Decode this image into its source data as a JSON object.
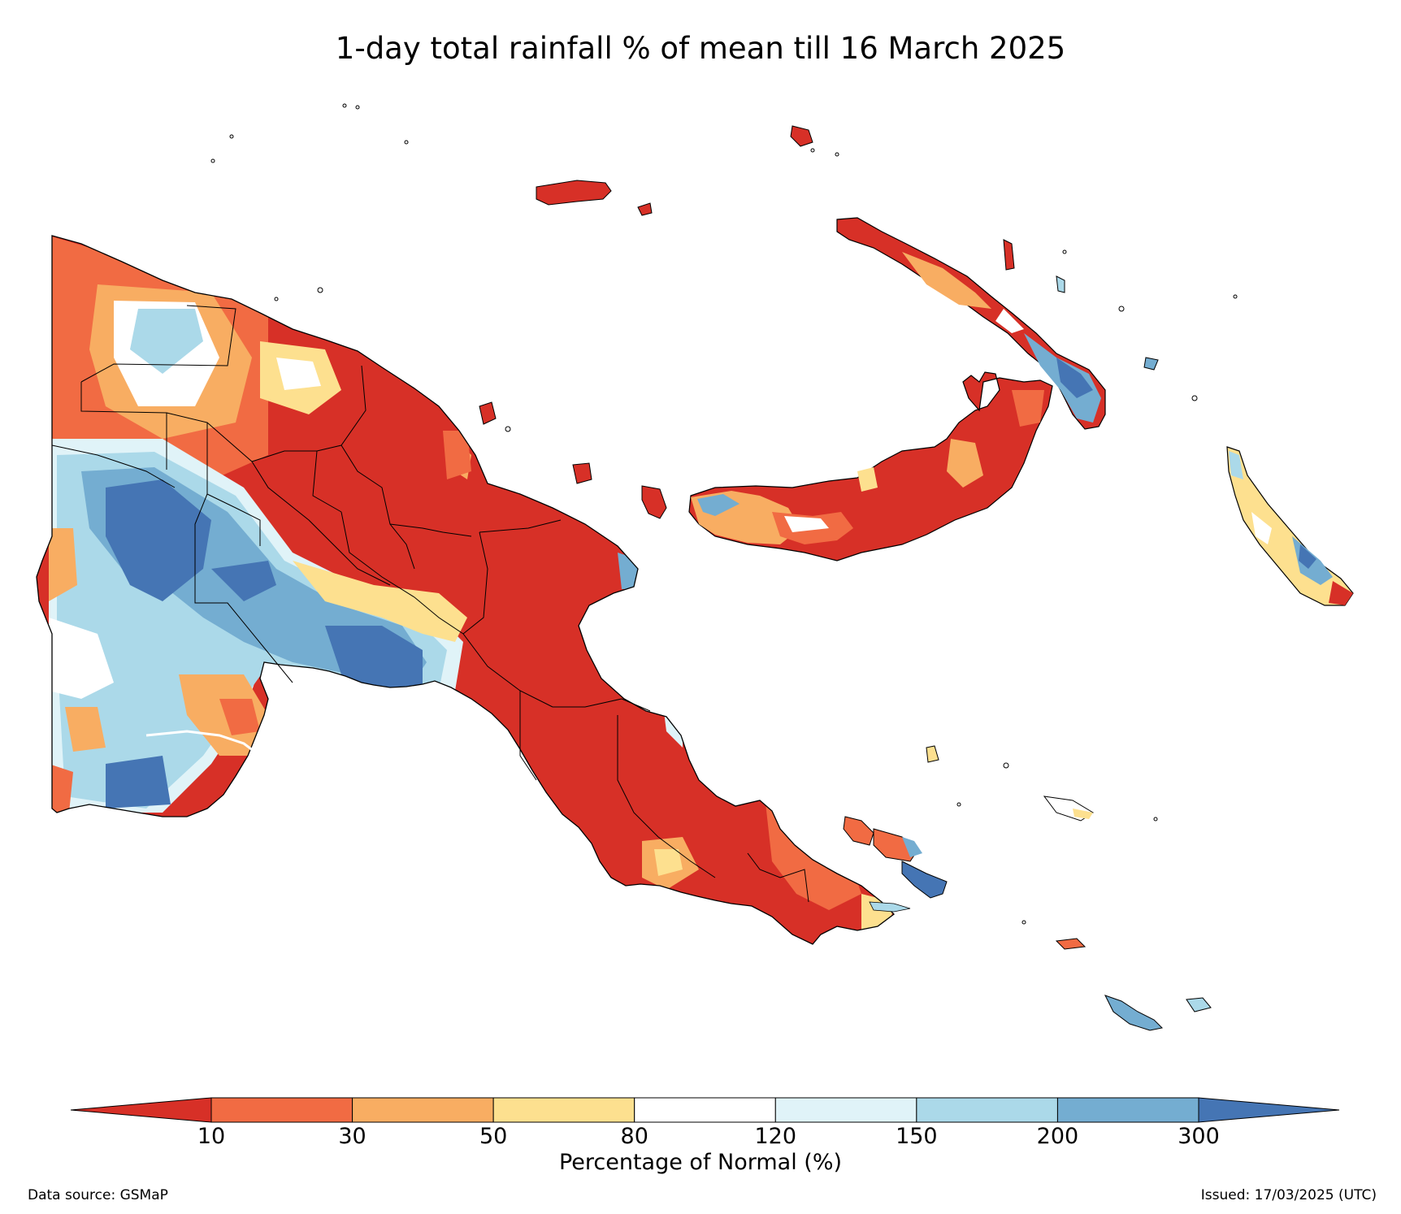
{
  "title": "1-day total rainfall % of mean till 16 March 2025",
  "colorbar": {
    "label": "Percentage of Normal (%)",
    "ticks": [
      "10",
      "30",
      "50",
      "80",
      "120",
      "150",
      "200",
      "300"
    ],
    "bins": [
      {
        "range": "<10",
        "color": "#d73027"
      },
      {
        "range": "10-30",
        "color": "#f16b43"
      },
      {
        "range": "30-50",
        "color": "#f8ad62"
      },
      {
        "range": "50-80",
        "color": "#fde08f"
      },
      {
        "range": "80-120",
        "color": "#ffffff"
      },
      {
        "range": "120-150",
        "color": "#e0f3f8"
      },
      {
        "range": "150-200",
        "color": "#abd9e9"
      },
      {
        "range": "200-300",
        "color": "#74add1"
      },
      {
        "range": ">300",
        "color": "#4575b4"
      }
    ]
  },
  "footer": {
    "source": "Data source: GSMaP",
    "issued": "Issued: 17/03/2025 (UTC)"
  }
}
